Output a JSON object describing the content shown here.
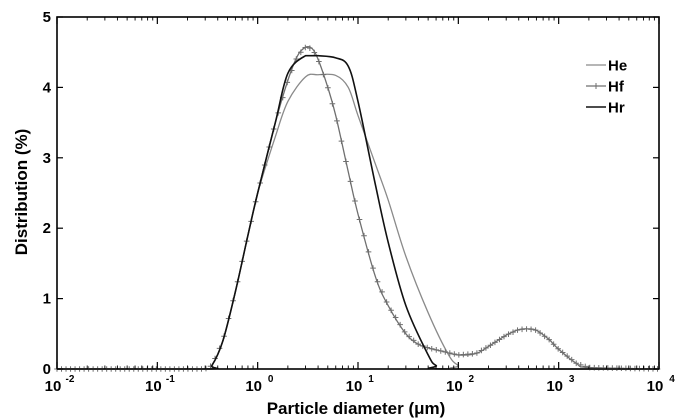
{
  "chart_data": {
    "type": "line",
    "xlabel": "Particle diameter (μm)",
    "ylabel": "Distribution (%)",
    "x_scale": "log",
    "xlim": [
      0.01,
      10000
    ],
    "ylim": [
      0,
      5
    ],
    "x_ticks": [
      {
        "value": 0.01,
        "base": "10",
        "exp": "-2"
      },
      {
        "value": 0.1,
        "base": "10",
        "exp": "-1"
      },
      {
        "value": 1,
        "base": "10",
        "exp": "0"
      },
      {
        "value": 10,
        "base": "10",
        "exp": "1"
      },
      {
        "value": 100,
        "base": "10",
        "exp": "2"
      },
      {
        "value": 1000,
        "base": "10",
        "exp": "3"
      },
      {
        "value": 10000,
        "base": "10",
        "exp": "4"
      }
    ],
    "y_ticks": [
      "0",
      "1",
      "2",
      "3",
      "4",
      "5"
    ],
    "grid": false,
    "legend_position": "top-right",
    "series": [
      {
        "name": "He",
        "color": "#8a8a8a",
        "marker": "none",
        "x": [
          0.01,
          0.3,
          0.35,
          0.45,
          0.6,
          0.8,
          1.0,
          1.5,
          2.0,
          3.0,
          4.0,
          6.0,
          8.0,
          10,
          15,
          20,
          30,
          50,
          80,
          100,
          120,
          10000
        ],
        "y": [
          0,
          0,
          0.05,
          0.4,
          1.1,
          1.9,
          2.5,
          3.3,
          3.8,
          4.15,
          4.18,
          4.17,
          4.0,
          3.6,
          2.9,
          2.4,
          1.6,
          0.8,
          0.2,
          0.05,
          0,
          0
        ]
      },
      {
        "name": "Hf",
        "color": "#6f6f6f",
        "marker": "plus",
        "x": [
          0.01,
          0.3,
          0.35,
          0.45,
          0.6,
          0.8,
          1.0,
          1.5,
          2.0,
          2.5,
          3.0,
          3.5,
          4.0,
          5.0,
          6.0,
          8.0,
          10,
          15,
          20,
          30,
          40,
          50,
          70,
          100,
          150,
          200,
          300,
          400,
          500,
          600,
          800,
          1000,
          1500,
          2000,
          10000
        ],
        "y": [
          0,
          0,
          0.05,
          0.4,
          1.1,
          1.9,
          2.5,
          3.5,
          4.1,
          4.45,
          4.57,
          4.55,
          4.4,
          4.0,
          3.6,
          2.8,
          2.2,
          1.3,
          0.9,
          0.5,
          0.35,
          0.3,
          0.25,
          0.2,
          0.22,
          0.32,
          0.48,
          0.56,
          0.57,
          0.55,
          0.42,
          0.28,
          0.08,
          0.02,
          0
        ]
      },
      {
        "name": "Hr",
        "color": "#111111",
        "marker": "none",
        "x": [
          0.01,
          0.3,
          0.35,
          0.45,
          0.6,
          0.8,
          1.0,
          1.5,
          2.0,
          3.0,
          4.0,
          6.0,
          8.0,
          10,
          15,
          20,
          30,
          50,
          60,
          80,
          10000
        ],
        "y": [
          0,
          0,
          0.05,
          0.4,
          1.1,
          1.9,
          2.5,
          3.5,
          4.2,
          4.45,
          4.45,
          4.42,
          4.3,
          3.8,
          2.6,
          1.8,
          0.9,
          0.2,
          0.05,
          0,
          0
        ]
      }
    ]
  }
}
